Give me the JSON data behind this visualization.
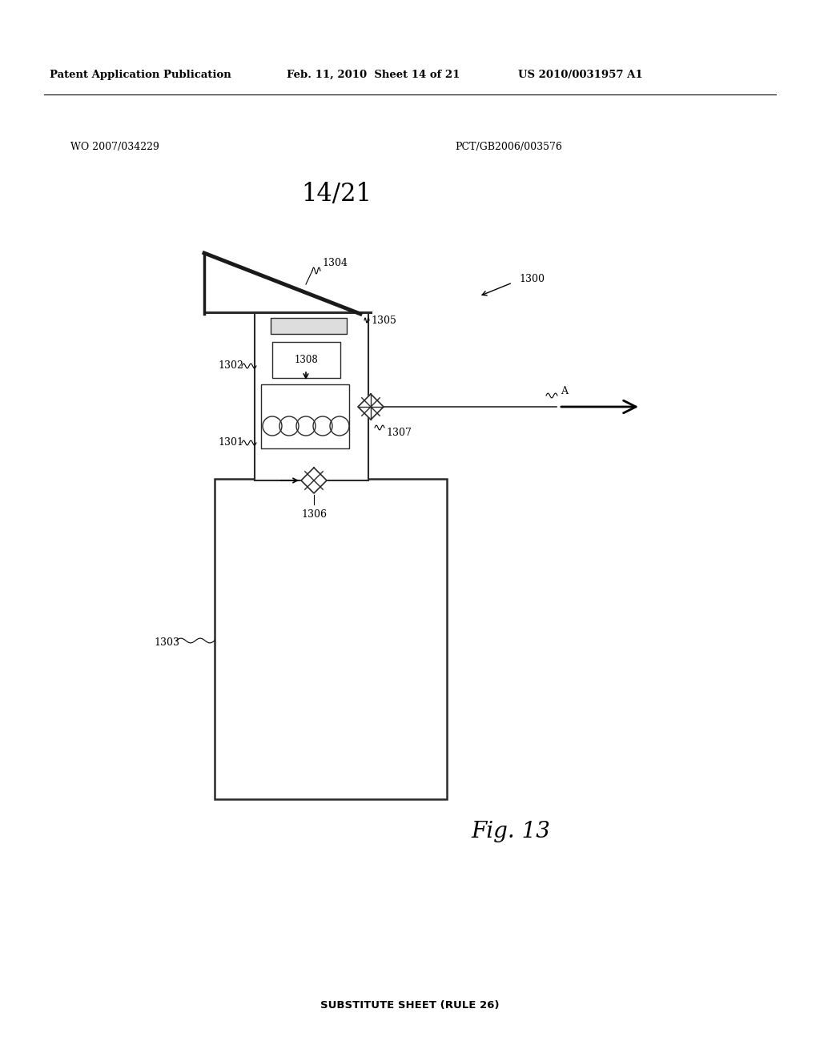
{
  "bg_color": "#ffffff",
  "header_left": "Patent Application Publication",
  "header_mid": "Feb. 11, 2010  Sheet 14 of 21",
  "header_right": "US 2010/0031957 A1",
  "wo_text": "WO 2007/034229",
  "pct_text": "PCT/GB2006/003576",
  "sheet_label": "14/21",
  "fig_label": "Fig. 13",
  "footer": "SUBSTITUTE SHEET (RULE 26)",
  "label_1300": "1300",
  "label_1301": "1301",
  "label_1302": "1302",
  "label_1303": "1303",
  "label_1304": "1304",
  "label_1305": "1305",
  "label_1306": "1306",
  "label_1307": "1307",
  "label_1308": "1308",
  "label_A": "A"
}
